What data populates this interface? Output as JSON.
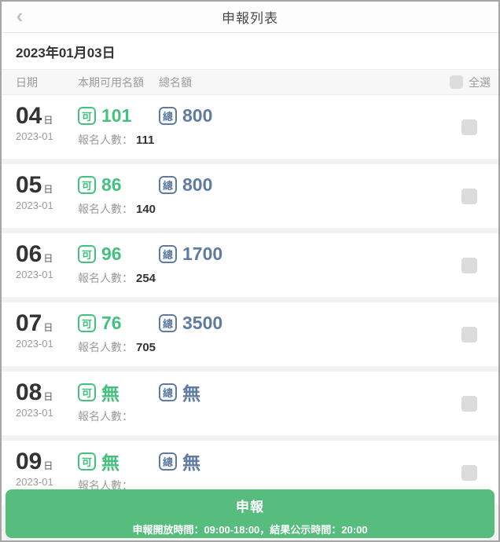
{
  "header": {
    "title": "申報列表",
    "back_icon": "‹"
  },
  "date_bar": {
    "date": "2023年01月03日"
  },
  "columns": {
    "date": "日期",
    "available": "本期可用名額",
    "total": "總名額",
    "select_all": "全選"
  },
  "badges": {
    "available": "可",
    "total": "總"
  },
  "labels": {
    "day_unit": "日",
    "signup_count": "報名人數："
  },
  "rows": [
    {
      "day": "04",
      "month": "2023-01",
      "available": "101",
      "total": "800",
      "signup": "111"
    },
    {
      "day": "05",
      "month": "2023-01",
      "available": "86",
      "total": "800",
      "signup": "140"
    },
    {
      "day": "06",
      "month": "2023-01",
      "available": "96",
      "total": "1700",
      "signup": "254"
    },
    {
      "day": "07",
      "month": "2023-01",
      "available": "76",
      "total": "3500",
      "signup": "705"
    },
    {
      "day": "08",
      "month": "2023-01",
      "available": "無",
      "total": "無",
      "signup": ""
    },
    {
      "day": "09",
      "month": "2023-01",
      "available": "無",
      "total": "無",
      "signup": ""
    }
  ],
  "footer": {
    "button": "申報",
    "info": "申報開放時間：09:00-18:00，結果公示時間：20:00"
  },
  "colors": {
    "available_green": "#45c17f",
    "total_blue": "#5f7ba2",
    "footer_green": "#56bd7e"
  }
}
